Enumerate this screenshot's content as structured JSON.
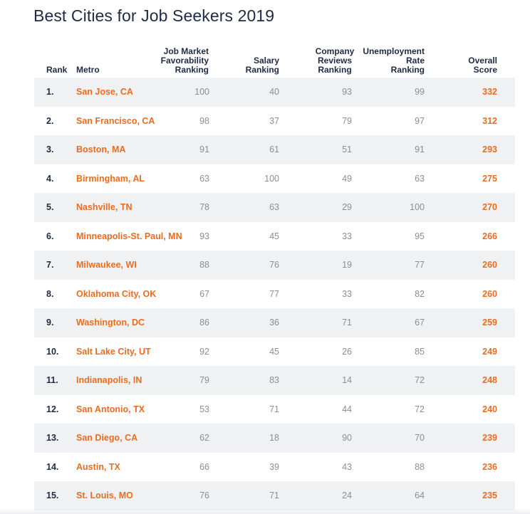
{
  "title": "Best Cities for Job Seekers 2019",
  "colors": {
    "title": "#1f2a44",
    "metro": "#ec6b1e",
    "score": "#ec6b1e",
    "value": "#8b8e96",
    "row_shade": "#f0f1f3"
  },
  "headers": {
    "rank": "Rank",
    "metro": "Metro",
    "job_market": "Job Market\nFavorability\nRanking",
    "salary": "Salary\nRanking",
    "company": "Company\nReviews\nRanking",
    "unemployment": "Unemployment\nRate\nRanking",
    "overall": "Overall\nScore"
  },
  "chart_data": {
    "type": "table",
    "title": "Best Cities for Job Seekers 2019",
    "columns": [
      "Rank",
      "Metro",
      "Job Market Favorability Ranking",
      "Salary Ranking",
      "Company Reviews Ranking",
      "Unemployment Rate Ranking",
      "Overall Score"
    ],
    "rows": [
      {
        "rank": "1.",
        "metro": "San Jose, CA",
        "job_market": "100",
        "salary": "40",
        "company": "93",
        "unemployment": "99",
        "overall": "332"
      },
      {
        "rank": "2.",
        "metro": "San Francisco, CA",
        "job_market": "98",
        "salary": "37",
        "company": "79",
        "unemployment": "97",
        "overall": "312"
      },
      {
        "rank": "3.",
        "metro": "Boston, MA",
        "job_market": "91",
        "salary": "61",
        "company": "51",
        "unemployment": "91",
        "overall": "293"
      },
      {
        "rank": "4.",
        "metro": "Birmingham, AL",
        "job_market": "63",
        "salary": "100",
        "company": "49",
        "unemployment": "63",
        "overall": "275"
      },
      {
        "rank": "5.",
        "metro": "Nashville, TN",
        "job_market": "78",
        "salary": "63",
        "company": "29",
        "unemployment": "100",
        "overall": "270"
      },
      {
        "rank": "6.",
        "metro": "Minneapolis-St. Paul, MN",
        "job_market": "93",
        "salary": "45",
        "company": "33",
        "unemployment": "95",
        "overall": "266"
      },
      {
        "rank": "7.",
        "metro": "Milwaukee, WI",
        "job_market": "88",
        "salary": "76",
        "company": "19",
        "unemployment": "77",
        "overall": "260"
      },
      {
        "rank": "8.",
        "metro": "Oklahoma City, OK",
        "job_market": "67",
        "salary": "77",
        "company": "33",
        "unemployment": "82",
        "overall": "260"
      },
      {
        "rank": "9.",
        "metro": "Washington, DC",
        "job_market": "86",
        "salary": "36",
        "company": "71",
        "unemployment": "67",
        "overall": "259"
      },
      {
        "rank": "10.",
        "metro": "Salt Lake City, UT",
        "job_market": "92",
        "salary": "45",
        "company": "26",
        "unemployment": "85",
        "overall": "249"
      },
      {
        "rank": "11.",
        "metro": "Indianapolis, IN",
        "job_market": "79",
        "salary": "83",
        "company": "14",
        "unemployment": "72",
        "overall": "248"
      },
      {
        "rank": "12.",
        "metro": "San Antonio, TX",
        "job_market": "53",
        "salary": "71",
        "company": "44",
        "unemployment": "72",
        "overall": "240"
      },
      {
        "rank": "13.",
        "metro": "San Diego, CA",
        "job_market": "62",
        "salary": "18",
        "company": "90",
        "unemployment": "70",
        "overall": "239"
      },
      {
        "rank": "14.",
        "metro": "Austin, TX",
        "job_market": "66",
        "salary": "39",
        "company": "43",
        "unemployment": "88",
        "overall": "236"
      },
      {
        "rank": "15.",
        "metro": "St. Louis, MO",
        "job_market": "76",
        "salary": "71",
        "company": "24",
        "unemployment": "64",
        "overall": "235"
      }
    ]
  }
}
